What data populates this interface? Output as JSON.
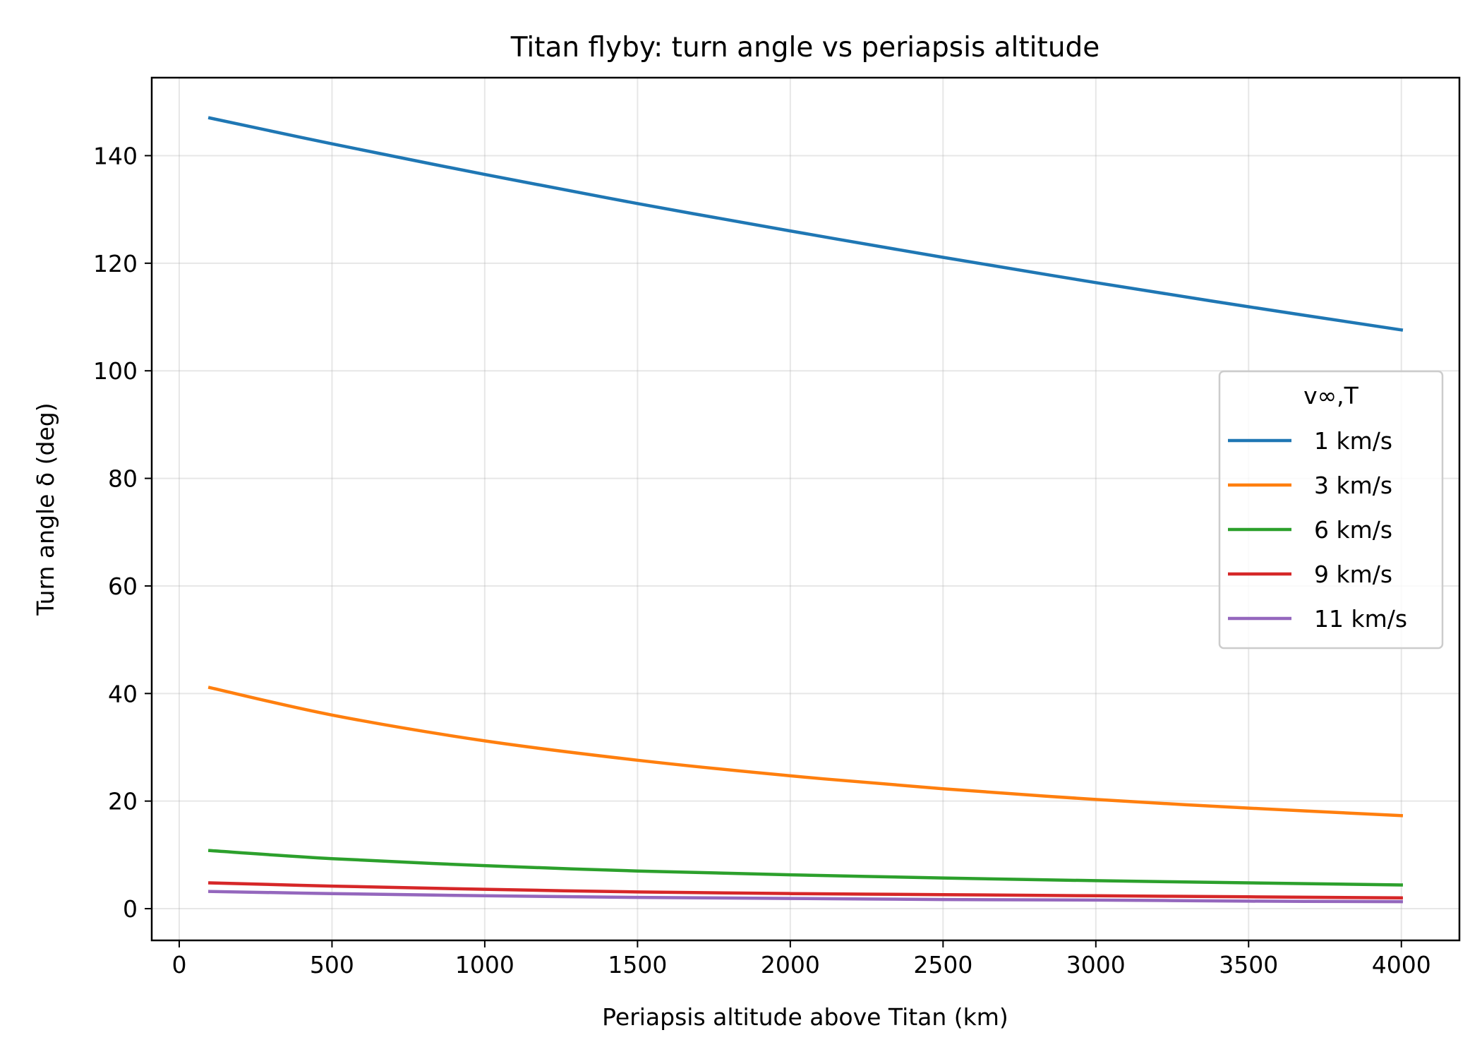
{
  "chart_data": {
    "type": "line",
    "title": "Titan flyby: turn angle vs periapsis altitude",
    "xlabel": "Periapsis altitude above Titan (km)",
    "ylabel": "Turn angle δ (deg)",
    "xlim": [
      -90,
      4190
    ],
    "ylim": [
      -5.9,
      154.5
    ],
    "xticks": [
      0,
      500,
      1000,
      1500,
      2000,
      2500,
      3000,
      3500,
      4000
    ],
    "yticks": [
      0,
      20,
      40,
      60,
      80,
      100,
      120,
      140
    ],
    "grid": true,
    "legend": {
      "title": "v∞,T",
      "position": "center-right"
    },
    "x": [
      100,
      500,
      1000,
      1500,
      2000,
      2500,
      3000,
      3500,
      4000
    ],
    "series": [
      {
        "name": "1 km/s",
        "color": "#1f77b4",
        "values": [
          147.0,
          142.2,
          136.5,
          131.1,
          126.0,
          121.1,
          116.4,
          111.9,
          107.6
        ]
      },
      {
        "name": "3 km/s",
        "color": "#ff7f0e",
        "values": [
          41.1,
          36.0,
          31.2,
          27.6,
          24.7,
          22.3,
          20.3,
          18.7,
          17.3
        ]
      },
      {
        "name": "6 km/s",
        "color": "#2ca02c",
        "values": [
          10.8,
          9.3,
          8.0,
          7.0,
          6.3,
          5.7,
          5.2,
          4.8,
          4.4
        ]
      },
      {
        "name": "9 km/s",
        "color": "#d62728",
        "values": [
          4.8,
          4.2,
          3.6,
          3.1,
          2.8,
          2.6,
          2.4,
          2.2,
          2.0
        ]
      },
      {
        "name": "11 km/s",
        "color": "#9467bd",
        "values": [
          3.2,
          2.8,
          2.4,
          2.1,
          1.9,
          1.7,
          1.6,
          1.4,
          1.3
        ]
      }
    ]
  }
}
